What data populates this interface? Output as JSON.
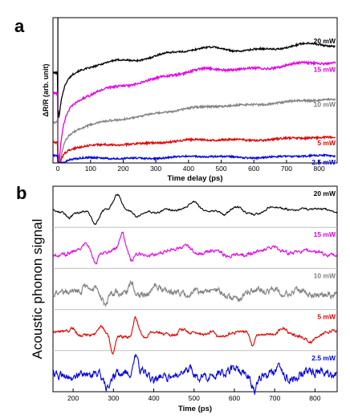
{
  "chart_data": [
    {
      "panel": "a",
      "type": "line",
      "xlabel": "Time delay (ps)",
      "ylabel": "ΔR/R (arb. unit)",
      "xlim": [
        -15,
        855
      ],
      "xticks": [
        0,
        100,
        200,
        300,
        400,
        500,
        600,
        700,
        800
      ],
      "grid": false,
      "legend": "inline labels at right end of each trace",
      "series": [
        {
          "name": "20 mW",
          "color": "#000000",
          "baseline": 0.62,
          "rise": 0.3,
          "rise_tau": 180,
          "dip": 0.26,
          "noise": 0.006,
          "wiggle": 0.015
        },
        {
          "name": "15 mW",
          "color": "#e000e0",
          "baseline": 0.48,
          "rise": 0.4,
          "rise_tau": 220,
          "dip": 0.42,
          "noise": 0.008,
          "wiggle": 0.012
        },
        {
          "name": "10 mW",
          "color": "#808080",
          "baseline": 0.28,
          "rise": 0.3,
          "rise_tau": 300,
          "dip": 0.3,
          "noise": 0.007,
          "wiggle": 0.006
        },
        {
          "name": "5 mW",
          "color": "#e00000",
          "baseline": 0.14,
          "rise": 0.1,
          "rise_tau": 260,
          "dip": 0.14,
          "noise": 0.007,
          "wiggle": 0.006
        },
        {
          "name": "2.5 mW",
          "color": "#0000e0",
          "baseline": 0.05,
          "rise": 0.03,
          "rise_tau": 200,
          "dip": 0.07,
          "noise": 0.006,
          "wiggle": 0.006
        }
      ]
    },
    {
      "panel": "b",
      "type": "line",
      "xlabel": "Time (ps)",
      "ylabel": "Acoustic phonon signal",
      "xlim": [
        150,
        855
      ],
      "xticks": [
        200,
        300,
        400,
        500,
        600,
        700,
        800
      ],
      "grid": false,
      "legend": "inline labels above each trace",
      "series": [
        {
          "name": "20 mW",
          "color": "#000000",
          "noise": 0.05,
          "features": [
            [
              190,
              -0.25,
              8
            ],
            [
              255,
              -0.9,
              14
            ],
            [
              310,
              1.0,
              14
            ],
            [
              360,
              -0.4,
              14
            ],
            [
              430,
              0.3,
              16
            ],
            [
              500,
              0.4,
              16
            ],
            [
              575,
              -0.3,
              12
            ],
            [
              610,
              0.2,
              14
            ],
            [
              690,
              0.2,
              14
            ],
            [
              770,
              0.2,
              14
            ]
          ]
        },
        {
          "name": "15 mW",
          "color": "#e000e0",
          "noise": 0.09,
          "features": [
            [
              230,
              0.25,
              10
            ],
            [
              255,
              -0.7,
              8
            ],
            [
              300,
              0.25,
              10
            ],
            [
              322,
              1.0,
              9
            ],
            [
              345,
              -0.5,
              10
            ],
            [
              480,
              0.3,
              14
            ],
            [
              580,
              -0.25,
              12
            ],
            [
              700,
              0.2,
              14
            ]
          ]
        },
        {
          "name": "10 mW",
          "color": "#808080",
          "noise": 0.18,
          "features": [
            [
              235,
              0.5,
              10
            ],
            [
              255,
              0.3,
              8
            ],
            [
              280,
              -0.8,
              8
            ],
            [
              345,
              0.9,
              8
            ],
            [
              405,
              0.35,
              12
            ],
            [
              560,
              0.3,
              12
            ],
            [
              610,
              -0.3,
              12
            ],
            [
              700,
              0.3,
              14
            ]
          ]
        },
        {
          "name": "5 mW",
          "color": "#e00000",
          "noise": 0.08,
          "features": [
            [
              200,
              0.3,
              10
            ],
            [
              270,
              0.45,
              8
            ],
            [
              298,
              -1.0,
              8
            ],
            [
              355,
              1.0,
              8
            ],
            [
              380,
              -0.3,
              10
            ],
            [
              470,
              0.3,
              12
            ],
            [
              545,
              0.3,
              12
            ],
            [
              645,
              -0.8,
              8
            ],
            [
              720,
              0.3,
              12
            ],
            [
              790,
              -0.25,
              12
            ]
          ]
        },
        {
          "name": "2.5 mW",
          "color": "#0000e0",
          "noise": 0.22,
          "features": [
            [
              285,
              -0.6,
              8
            ],
            [
              310,
              0.3,
              8
            ],
            [
              355,
              0.9,
              8
            ],
            [
              400,
              -0.3,
              12
            ],
            [
              490,
              0.35,
              12
            ],
            [
              600,
              0.3,
              12
            ],
            [
              650,
              -0.9,
              8
            ],
            [
              710,
              0.45,
              10
            ],
            [
              770,
              0.3,
              12
            ]
          ]
        }
      ]
    }
  ],
  "labels": {
    "panel_a": "a",
    "panel_b": "b"
  }
}
